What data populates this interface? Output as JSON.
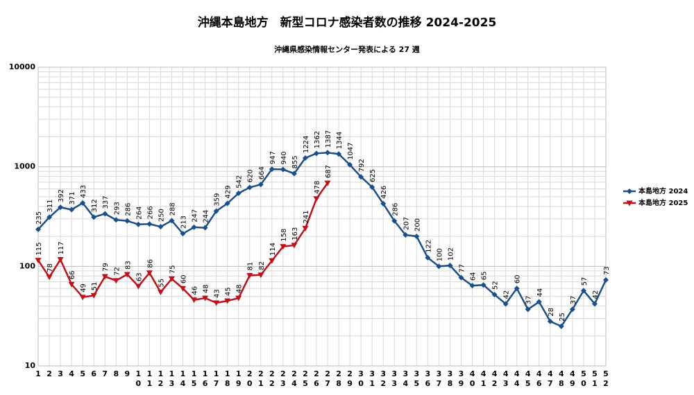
{
  "chart_data": {
    "type": "line",
    "title": "沖縄本島地方　新型コロナ感染者数の推移 2024-2025",
    "subtitle": "沖縄県感染情報センター発表による 27 週",
    "categories": [
      "1",
      "2",
      "3",
      "4",
      "5",
      "6",
      "7",
      "8",
      "9",
      "10",
      "11",
      "12",
      "13",
      "14",
      "15",
      "16",
      "17",
      "18",
      "19",
      "20",
      "21",
      "22",
      "23",
      "24",
      "25",
      "26",
      "27",
      "28",
      "29",
      "30",
      "31",
      "32",
      "33",
      "34",
      "35",
      "36",
      "37",
      "38",
      "39",
      "40",
      "41",
      "42",
      "43",
      "44",
      "45",
      "46",
      "47",
      "48",
      "49",
      "50",
      "51",
      "52"
    ],
    "series": [
      {
        "name": "本島地方 2024",
        "color": "#1a4f8b",
        "marker": "diamond",
        "values": [
          235,
          311,
          392,
          371,
          433,
          312,
          337,
          293,
          286,
          264,
          266,
          250,
          288,
          213,
          247,
          244,
          359,
          429,
          542,
          620,
          664,
          947,
          940,
          855,
          1224,
          1362,
          1387,
          1344,
          1047,
          792,
          625,
          426,
          286,
          207,
          200,
          122,
          100,
          102,
          77,
          64,
          65,
          52,
          42,
          60,
          37,
          44,
          28,
          25,
          37,
          57,
          42,
          73
        ]
      },
      {
        "name": "本島地方 2025",
        "color": "#c0101a",
        "marker": "triangle-down",
        "values": [
          115,
          78,
          117,
          66,
          49,
          51,
          79,
          72,
          83,
          63,
          86,
          55,
          75,
          60,
          46,
          48,
          43,
          45,
          48,
          81,
          82,
          114,
          158,
          163,
          241,
          478,
          687,
          null,
          null,
          null,
          null,
          null,
          null,
          null,
          null,
          null,
          null,
          null,
          null,
          null,
          null,
          null,
          null,
          null,
          null,
          null,
          null,
          null,
          null,
          null,
          null,
          null
        ]
      }
    ],
    "ylim": [
      10,
      10000
    ],
    "yticks": [
      10,
      100,
      1000,
      10000
    ],
    "log_scale": true,
    "grid": true,
    "legend": "right"
  }
}
